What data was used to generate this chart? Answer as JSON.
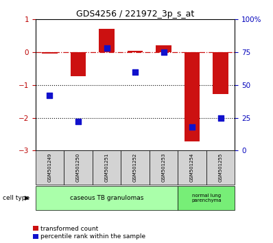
{
  "title": "GDS4256 / 221972_3p_s_at",
  "samples": [
    "GSM501249",
    "GSM501250",
    "GSM501251",
    "GSM501252",
    "GSM501253",
    "GSM501254",
    "GSM501255"
  ],
  "red_values": [
    -0.05,
    -0.72,
    0.72,
    0.05,
    0.22,
    -2.72,
    -1.28
  ],
  "blue_percentiles": [
    42,
    22,
    78,
    60,
    75,
    18,
    25
  ],
  "ylim": [
    -3,
    1
  ],
  "yticks_right_pct": [
    0,
    25,
    50,
    75,
    100
  ],
  "red_color": "#cc1111",
  "blue_color": "#1111cc",
  "dash_color": "#cc1111",
  "grid_color": "#000000",
  "bar_width": 0.55,
  "blue_marker_size": 40,
  "legend_red_label": "transformed count",
  "legend_blue_label": "percentile rank within the sample",
  "cell_type_label": "cell type",
  "bg_color": "#ffffff",
  "tick_color_right": "#0000bb",
  "tick_color_left": "#bb0000",
  "ct1_color": "#aaffaa",
  "ct2_color": "#77ee77",
  "sample_box_color": "#d3d3d3"
}
